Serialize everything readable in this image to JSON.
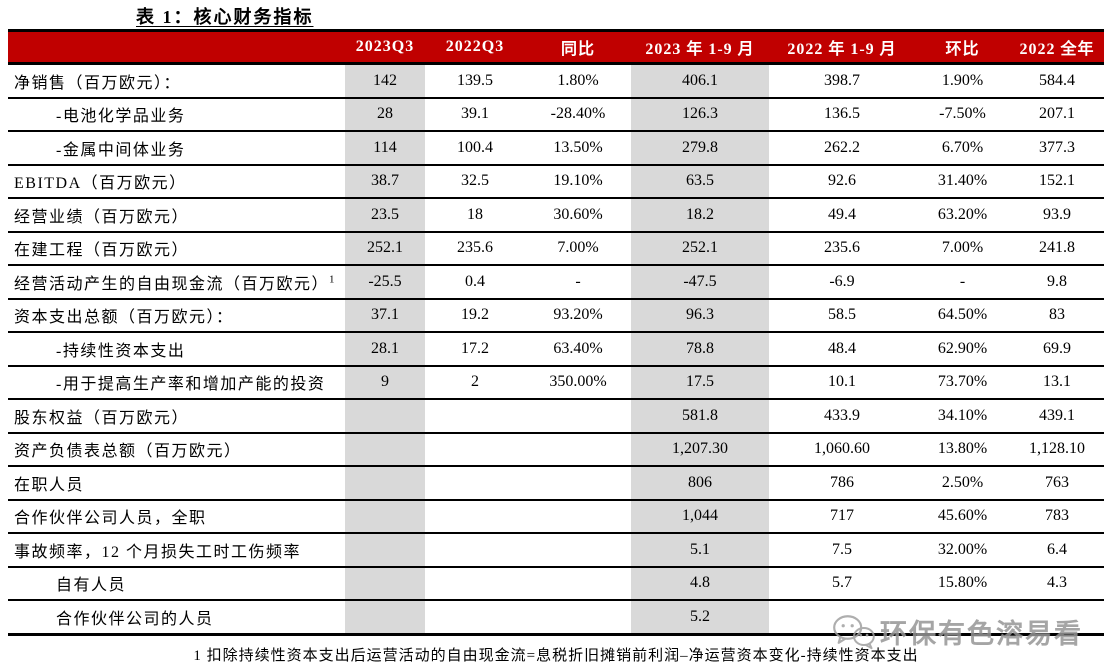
{
  "title": "表 1：核心财务指标",
  "table": {
    "columns": [
      "",
      "2023Q3",
      "2022Q3",
      "同比",
      "2023 年 1-9 月",
      "2022 年 1-9 月",
      "环比",
      "2022 全年"
    ],
    "rows": [
      {
        "label": "净销售（百万欧元）：",
        "indent": false,
        "sup": "",
        "values": [
          "142",
          "139.5",
          "1.80%",
          "406.1",
          "398.7",
          "1.90%",
          "584.4"
        ]
      },
      {
        "label": "-电池化学品业务",
        "indent": true,
        "sup": "",
        "values": [
          "28",
          "39.1",
          "-28.40%",
          "126.3",
          "136.5",
          "-7.50%",
          "207.1"
        ]
      },
      {
        "label": "-金属中间体业务",
        "indent": true,
        "sup": "",
        "values": [
          "114",
          "100.4",
          "13.50%",
          "279.8",
          "262.2",
          "6.70%",
          "377.3"
        ]
      },
      {
        "label": "EBITDA（百万欧元）",
        "indent": false,
        "sup": "",
        "values": [
          "38.7",
          "32.5",
          "19.10%",
          "63.5",
          "92.6",
          "31.40%",
          "152.1"
        ]
      },
      {
        "label": "经营业绩（百万欧元）",
        "indent": false,
        "sup": "",
        "values": [
          "23.5",
          "18",
          "30.60%",
          "18.2",
          "49.4",
          "63.20%",
          "93.9"
        ]
      },
      {
        "label": "在建工程（百万欧元）",
        "indent": false,
        "sup": "",
        "values": [
          "252.1",
          "235.6",
          "7.00%",
          "252.1",
          "235.6",
          "7.00%",
          "241.8"
        ]
      },
      {
        "label": "经营活动产生的自由现金流（百万欧元）",
        "indent": false,
        "sup": "1",
        "values": [
          "-25.5",
          "0.4",
          "-",
          "-47.5",
          "-6.9",
          "-",
          "9.8"
        ]
      },
      {
        "label": "资本支出总额（百万欧元）：",
        "indent": false,
        "sup": "",
        "values": [
          "37.1",
          "19.2",
          "93.20%",
          "96.3",
          "58.5",
          "64.50%",
          "83"
        ]
      },
      {
        "label": "-持续性资本支出",
        "indent": true,
        "sup": "",
        "values": [
          "28.1",
          "17.2",
          "63.40%",
          "78.8",
          "48.4",
          "62.90%",
          "69.9"
        ]
      },
      {
        "label": "-用于提高生产率和增加产能的投资",
        "indent": true,
        "sup": "",
        "values": [
          "9",
          "2",
          "350.00%",
          "17.5",
          "10.1",
          "73.70%",
          "13.1"
        ]
      },
      {
        "label": "股东权益（百万欧元）",
        "indent": false,
        "sup": "",
        "values": [
          "",
          "",
          "",
          "581.8",
          "433.9",
          "34.10%",
          "439.1"
        ]
      },
      {
        "label": "资产负债表总额（百万欧元）",
        "indent": false,
        "sup": "",
        "values": [
          "",
          "",
          "",
          "1,207.30",
          "1,060.60",
          "13.80%",
          "1,128.10"
        ]
      },
      {
        "label": "在职人员",
        "indent": false,
        "sup": "",
        "values": [
          "",
          "",
          "",
          "806",
          "786",
          "2.50%",
          "763"
        ]
      },
      {
        "label": "合作伙伴公司人员，全职",
        "indent": false,
        "sup": "",
        "values": [
          "",
          "",
          "",
          "1,044",
          "717",
          "45.60%",
          "783"
        ]
      },
      {
        "label": "事故频率，12 个月损失工时工伤频率",
        "indent": false,
        "sup": "",
        "values": [
          "",
          "",
          "",
          "5.1",
          "7.5",
          "32.00%",
          "6.4"
        ]
      },
      {
        "label": "自有人员",
        "indent": true,
        "sup": "",
        "values": [
          "",
          "",
          "",
          "4.8",
          "5.7",
          "15.80%",
          "4.3"
        ]
      },
      {
        "label": "合作伙伴公司的人员",
        "indent": true,
        "sup": "",
        "values": [
          "",
          "",
          "",
          "5.2",
          "",
          "",
          ""
        ]
      }
    ]
  },
  "footnote": "1 扣除持续性资本支出后运营活动的自由现金流=息税折旧摊销前利润–净运营资本变化-持续性资本支出",
  "watermark": {
    "text": "环保有色溶易看",
    "icon": "wechat-icon"
  },
  "colors": {
    "header_bg": "#C00000",
    "header_text": "#FFFFFF",
    "shaded_column_bg": "#D9D9D9",
    "grid_line": "#000000"
  }
}
